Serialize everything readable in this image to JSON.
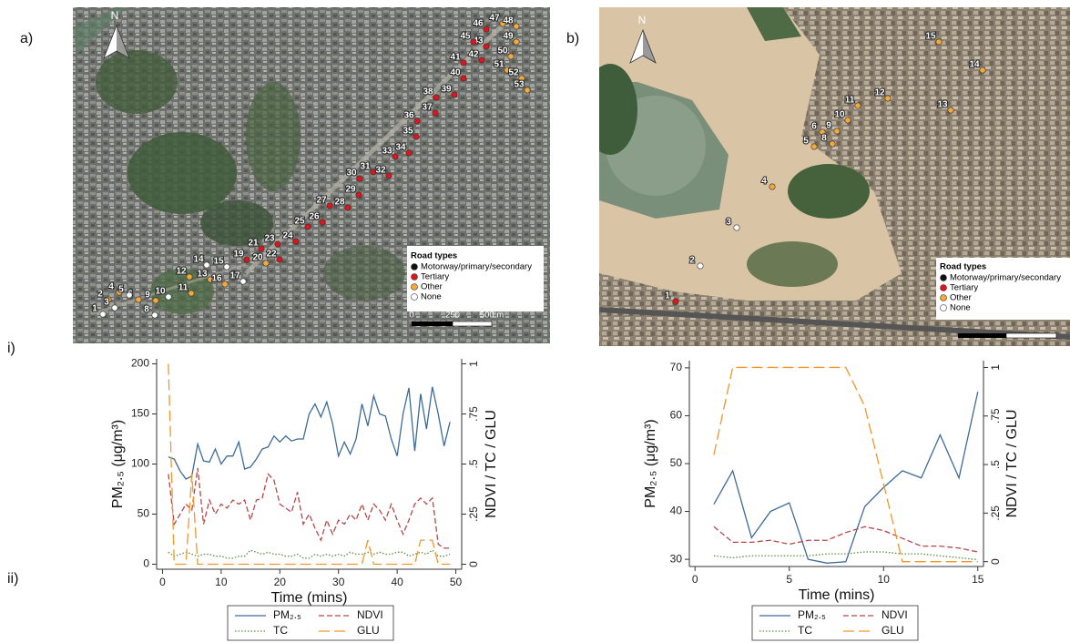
{
  "panels": {
    "a": "a)",
    "b": "b)",
    "i": "i)",
    "ii": "ii)"
  },
  "maps": [
    {
      "north": "N",
      "legend_title": "Road types",
      "groups": [
        {
          "name": "Motorway/primary/secondary",
          "color": "#111111",
          "points": []
        },
        {
          "name": "Tertiary",
          "color": "#e0141e",
          "points": [
            19,
            21,
            22,
            23,
            24,
            25,
            26,
            27,
            28,
            29,
            30,
            31,
            32,
            33,
            34,
            35,
            36,
            37,
            38,
            39,
            40,
            41,
            42,
            43,
            45,
            46
          ]
        },
        {
          "name": "Other",
          "color": "#f2a93b",
          "points": [
            2,
            4,
            6,
            9,
            11,
            12,
            13,
            16,
            20,
            47,
            48,
            49,
            50,
            51,
            52,
            53
          ]
        },
        {
          "name": "None",
          "color": "#ffffff",
          "points": [
            1,
            3,
            5,
            8,
            10,
            14,
            15,
            17
          ]
        }
      ],
      "scale_labels": [
        0,
        250,
        "500 m"
      ]
    },
    {
      "north": "N",
      "legend_title": "Road types",
      "groups": [
        {
          "name": "Motorway/primary/secondary",
          "color": "#111111",
          "points": []
        },
        {
          "name": "Tertiary",
          "color": "#e0141e",
          "points": [
            1
          ]
        },
        {
          "name": "Other",
          "color": "#f2a93b",
          "points": [
            4,
            5,
            6,
            8,
            9,
            10,
            11,
            12,
            13,
            14,
            15
          ]
        },
        {
          "name": "None",
          "color": "#ffffff",
          "points": [
            2,
            3
          ]
        }
      ]
    }
  ],
  "chart_data": [
    {
      "type": "line",
      "xlabel": "Time (mins)",
      "ylabel": "PM₂.₅ (μg/m³)",
      "y2label": "NDVI / TC / GLU",
      "x": [
        1,
        2,
        3,
        4,
        5,
        6,
        7,
        8,
        9,
        10,
        11,
        12,
        13,
        14,
        15,
        16,
        17,
        18,
        19,
        20,
        21,
        22,
        23,
        24,
        25,
        26,
        27,
        28,
        29,
        30,
        31,
        32,
        33,
        34,
        35,
        36,
        37,
        38,
        39,
        40,
        41,
        42,
        43,
        44,
        45,
        46,
        47,
        48,
        49
      ],
      "xlim": [
        -1,
        51
      ],
      "xticks": [
        0,
        10,
        20,
        30,
        40,
        50
      ],
      "ylim": [
        -5,
        205
      ],
      "yticks": [
        0,
        50,
        100,
        150,
        200
      ],
      "y2lim": [
        -0.025,
        1.025
      ],
      "y2ticks": [
        0,
        {
          "value": 0.25,
          "label": ".25"
        },
        {
          "value": 0.5,
          "label": ".5"
        },
        {
          "value": 0.75,
          "label": ".75"
        },
        1
      ],
      "series": [
        {
          "name": "PM₂.₅",
          "color": "#3e6a99",
          "line_style": "solid",
          "values": [
            107,
            105,
            93,
            85,
            88,
            120,
            103,
            102,
            115,
            100,
            108,
            108,
            122,
            95,
            97,
            105,
            115,
            117,
            128,
            122,
            128,
            123,
            125,
            125,
            150,
            160,
            147,
            162,
            140,
            108,
            122,
            110,
            125,
            160,
            138,
            168,
            150,
            148,
            125,
            108,
            150,
            176,
            113,
            170,
            135,
            177,
            150,
            118,
            142
          ]
        },
        {
          "name": "NDVI",
          "color": "#b5474b",
          "line_style": "dashed",
          "axis": "y2",
          "values": [
            0.45,
            0.2,
            0.25,
            0.3,
            0.27,
            0.48,
            0.2,
            0.32,
            0.25,
            0.3,
            0.28,
            0.32,
            0.3,
            0.32,
            0.22,
            0.32,
            0.33,
            0.45,
            0.42,
            0.3,
            0.28,
            0.26,
            0.36,
            0.2,
            0.25,
            0.18,
            0.12,
            0.22,
            0.15,
            0.22,
            0.2,
            0.25,
            0.22,
            0.3,
            0.22,
            0.3,
            0.27,
            0.22,
            0.3,
            0.22,
            0.15,
            0.22,
            0.3,
            0.33,
            0.3,
            0.33,
            0.1,
            0.08,
            0.08
          ]
        },
        {
          "name": "TC",
          "color": "#5a8f3c",
          "line_style": "dotted",
          "axis": "y2",
          "values": [
            0.06,
            0.04,
            0.05,
            0.06,
            0.05,
            0.04,
            0.05,
            0.05,
            0.04,
            0.04,
            0.03,
            0.03,
            0.04,
            0.04,
            0.07,
            0.06,
            0.05,
            0.06,
            0.05,
            0.05,
            0.04,
            0.04,
            0.05,
            0.03,
            0.03,
            0.05,
            0.04,
            0.05,
            0.04,
            0.05,
            0.04,
            0.06,
            0.05,
            0.05,
            0.06,
            0.05,
            0.06,
            0.05,
            0.05,
            0.06,
            0.06,
            0.04,
            0.05,
            0.06,
            0.05,
            0.07,
            0.04,
            0.04,
            0.05
          ]
        },
        {
          "name": "GLU",
          "color": "#f0962c",
          "line_style": "longdash",
          "axis": "y2",
          "values": [
            1,
            0,
            0,
            0,
            0.45,
            0,
            0,
            0,
            0,
            0,
            0,
            0,
            0,
            0,
            0,
            0,
            0,
            0,
            0,
            0,
            0,
            0,
            0,
            0,
            0,
            0,
            0,
            0,
            0,
            0,
            0,
            0,
            0,
            0,
            0.12,
            0,
            0,
            0,
            0,
            0,
            0,
            0,
            0,
            0.12,
            0.12,
            0.12,
            0,
            0,
            0
          ]
        }
      ]
    },
    {
      "type": "line",
      "xlabel": "Time (mins)",
      "ylabel": "PM₂.₅ (μg/m³)",
      "y2label": "NDVI / TC / GLU",
      "x": [
        1,
        2,
        3,
        4,
        5,
        6,
        7,
        8,
        9,
        10,
        11,
        12,
        13,
        14,
        15
      ],
      "xlim": [
        -0.3,
        15.3
      ],
      "xticks": [
        0,
        5,
        10,
        15
      ],
      "ylim": [
        28.5,
        71.5
      ],
      "yticks": [
        30,
        40,
        50,
        60,
        70
      ],
      "y2lim": [
        -0.025,
        1.035
      ],
      "y2ticks": [
        0,
        {
          "value": 0.25,
          "label": ".25"
        },
        {
          "value": 0.5,
          "label": ".5"
        },
        {
          "value": 0.75,
          "label": ".75"
        },
        1
      ],
      "series": [
        {
          "name": "PM₂.₅",
          "color": "#3e6a99",
          "line_style": "solid",
          "values": [
            41.5,
            48.5,
            34.5,
            40,
            41.8,
            30,
            29.2,
            29.5,
            41,
            45,
            48.5,
            47,
            56,
            47,
            65
          ]
        },
        {
          "name": "NDVI",
          "color": "#b5474b",
          "line_style": "dashed",
          "axis": "y2",
          "values": [
            0.18,
            0.1,
            0.1,
            0.11,
            0.09,
            0.11,
            0.11,
            0.15,
            0.18,
            0.16,
            0.12,
            0.08,
            0.08,
            0.07,
            0.05
          ]
        },
        {
          "name": "TC",
          "color": "#5a8f3c",
          "line_style": "dotted",
          "axis": "y2",
          "values": [
            0.03,
            0.02,
            0.03,
            0.03,
            0.03,
            0.03,
            0.04,
            0.04,
            0.05,
            0.05,
            0.04,
            0.04,
            0.03,
            0.02,
            0.01
          ]
        },
        {
          "name": "GLU",
          "color": "#f0962c",
          "line_style": "longdash",
          "axis": "y2",
          "values": [
            0.55,
            1,
            1,
            1,
            1,
            1,
            1,
            1,
            0.8,
            0.4,
            0,
            0,
            0,
            0,
            0
          ]
        }
      ]
    }
  ]
}
